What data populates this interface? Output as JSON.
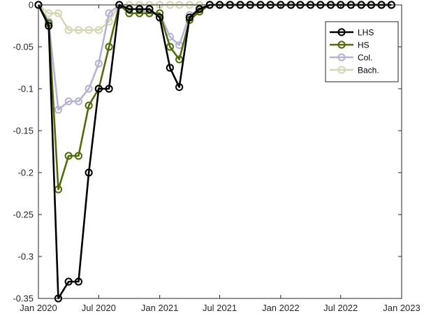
{
  "chart_data": {
    "type": "line",
    "title": "",
    "xlabel": "",
    "ylabel": "",
    "x": [
      "2020-01",
      "2020-02",
      "2020-03",
      "2020-04",
      "2020-05",
      "2020-06",
      "2020-07",
      "2020-08",
      "2020-09",
      "2020-10",
      "2020-11",
      "2020-12",
      "2021-01",
      "2021-02",
      "2021-03",
      "2021-04",
      "2021-05",
      "2021-06",
      "2021-07",
      "2021-08",
      "2021-09",
      "2021-10",
      "2021-11",
      "2021-12",
      "2022-01",
      "2022-02",
      "2022-03",
      "2022-04",
      "2022-05",
      "2022-06",
      "2022-07",
      "2022-08",
      "2022-09",
      "2022-10",
      "2022-11",
      "2022-12"
    ],
    "xlim": [
      "2020-01-01",
      "2023-01-01"
    ],
    "ylim": [
      -0.35,
      0
    ],
    "xticks": [
      {
        "date": "2020-01-01",
        "label": "Jan 2020"
      },
      {
        "date": "2020-07-01",
        "label": "Jul 2020"
      },
      {
        "date": "2021-01-01",
        "label": "Jan 2021"
      },
      {
        "date": "2021-07-01",
        "label": "Jul 2021"
      },
      {
        "date": "2022-01-01",
        "label": "Jan 2022"
      },
      {
        "date": "2022-07-01",
        "label": "Jul 2022"
      },
      {
        "date": "2023-01-01",
        "label": "Jan 2023"
      }
    ],
    "yticks": [
      {
        "value": 0,
        "label": "0"
      },
      {
        "value": -0.05,
        "label": "-0.05"
      },
      {
        "value": -0.1,
        "label": "-0.1"
      },
      {
        "value": -0.15,
        "label": "-0.15"
      },
      {
        "value": -0.2,
        "label": "-0.2"
      },
      {
        "value": -0.25,
        "label": "-0.25"
      },
      {
        "value": -0.3,
        "label": "-0.3"
      },
      {
        "value": -0.35,
        "label": "-0.35"
      }
    ],
    "grid": false,
    "legend_position": "top-right",
    "series": [
      {
        "name": "Bach.",
        "color": "#d6d6b4",
        "values": [
          0,
          -0.01,
          -0.01,
          -0.03,
          -0.03,
          -0.03,
          -0.03,
          -0.02,
          0,
          0,
          0,
          0,
          0,
          0,
          0,
          0,
          0,
          0,
          0,
          0,
          0,
          0,
          0,
          0,
          0,
          0,
          0,
          0,
          0,
          0,
          0,
          0,
          0,
          0,
          0,
          0
        ]
      },
      {
        "name": "Col.",
        "color": "#b4b4d2",
        "values": [
          0,
          -0.02,
          -0.125,
          -0.115,
          -0.115,
          -0.1,
          -0.07,
          -0.01,
          0,
          -0.005,
          -0.005,
          -0.01,
          -0.01,
          -0.038,
          -0.048,
          -0.012,
          -0.005,
          0,
          0,
          0,
          0,
          0,
          0,
          0,
          0,
          0,
          0,
          0,
          0,
          0,
          0,
          0,
          0,
          0,
          0,
          0
        ]
      },
      {
        "name": "HS",
        "color": "#4f6b0c",
        "values": [
          0,
          -0.022,
          -0.22,
          -0.18,
          -0.18,
          -0.12,
          -0.1,
          -0.05,
          0,
          -0.01,
          -0.01,
          -0.01,
          -0.01,
          -0.05,
          -0.065,
          -0.018,
          -0.008,
          0,
          0,
          0,
          0,
          0,
          0,
          0,
          0,
          0,
          0,
          0,
          0,
          0,
          0,
          0,
          0,
          0,
          0,
          0
        ]
      },
      {
        "name": "LHS",
        "color": "#000000",
        "values": [
          0,
          -0.025,
          -0.35,
          -0.33,
          -0.33,
          -0.2,
          -0.1,
          -0.1,
          0,
          -0.005,
          -0.005,
          -0.005,
          -0.015,
          -0.075,
          -0.098,
          -0.015,
          -0.005,
          0,
          0,
          0,
          0,
          0,
          0,
          0,
          0,
          0,
          0,
          0,
          0,
          0,
          0,
          0,
          0,
          0,
          0,
          0
        ]
      }
    ],
    "legend_order": [
      "LHS",
      "HS",
      "Col.",
      "Bach."
    ]
  }
}
